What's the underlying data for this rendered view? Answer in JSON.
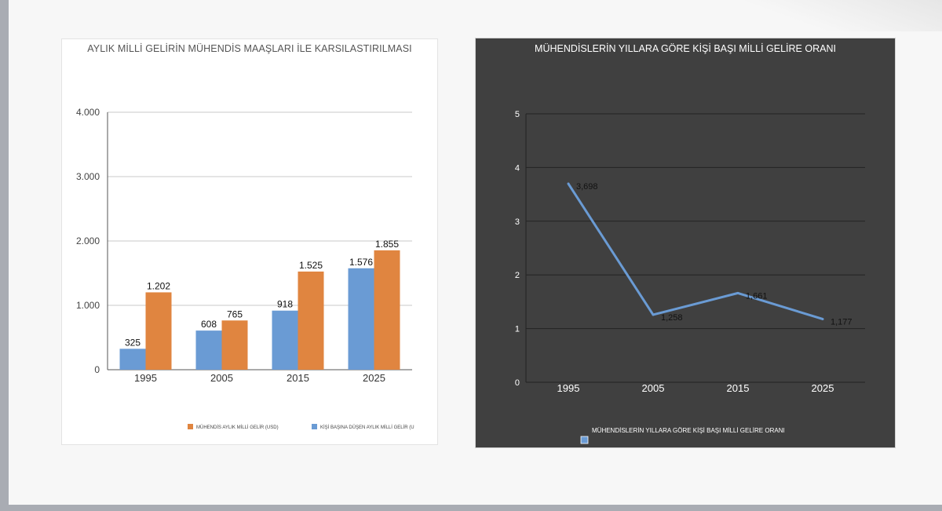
{
  "chart_data": [
    {
      "type": "bar",
      "title": "AYLIK MİLLİ GELİRİN MÜHENDİS MAAŞLARI İLE KARSILASTIRILMASI",
      "categories": [
        "1995",
        "2005",
        "2015",
        "2025"
      ],
      "ylim": [
        0,
        4000
      ],
      "yticks": [
        0,
        1000,
        2000,
        3000,
        4000
      ],
      "ytick_labels": [
        "0",
        "1.000",
        "2.000",
        "3.000",
        "4.000"
      ],
      "grid": true,
      "legend_position": "bottom-right",
      "series": [
        {
          "name": "KİŞİ BAŞINA DÜŞEN AYLIK MİLLİ GELİR  (U",
          "color": "#6a9bd4",
          "values": [
            325,
            608,
            918,
            1576
          ],
          "labels": [
            "325",
            "608",
            "918",
            "1.576"
          ]
        },
        {
          "name": "MÜHENDİS AYLIK MİLLİ GELİR (USD)",
          "color": "#e08540",
          "values": [
            1202,
            765,
            1525,
            1855
          ],
          "labels": [
            "1.202",
            "765",
            "1.525",
            "1.855"
          ]
        }
      ],
      "legend_order": [
        1,
        0
      ]
    },
    {
      "type": "line",
      "title": "MÜHENDİSLERİN YILLARA GÖRE KİŞİ BAŞI MİLLİ GELİRE ORANI",
      "categories": [
        "1995",
        "2005",
        "2015",
        "2025"
      ],
      "ylim": [
        0,
        5
      ],
      "yticks": [
        0,
        1,
        2,
        3,
        4,
        5
      ],
      "ytick_labels": [
        "0",
        "1",
        "2",
        "3",
        "4",
        "5"
      ],
      "grid": true,
      "legend_position": "bottom",
      "series": [
        {
          "name": "MÜHENDİSLERİN YILLARA GÖRE KİŞİ BAŞI MİLLİ GELİRE ORANI",
          "color": "#6a9bd4",
          "values": [
            3.698,
            1.258,
            1.661,
            1.177
          ],
          "labels": [
            "3,698",
            "1,258",
            "1,661",
            "1,177"
          ]
        }
      ]
    }
  ]
}
